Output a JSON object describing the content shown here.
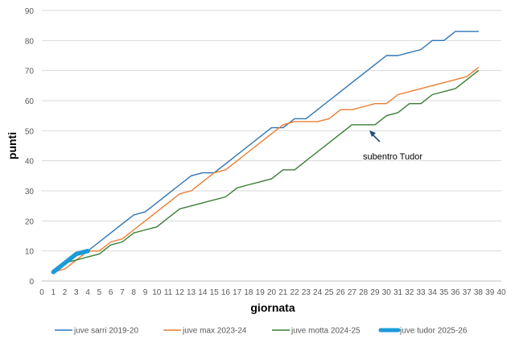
{
  "chart_data": {
    "type": "line",
    "title": "",
    "xlabel": "giornata",
    "ylabel": "punti",
    "xlim": [
      0,
      40
    ],
    "ylim": [
      0,
      90
    ],
    "x_ticks": [
      0,
      1,
      2,
      3,
      4,
      5,
      6,
      7,
      8,
      9,
      10,
      11,
      12,
      13,
      14,
      15,
      16,
      17,
      18,
      19,
      20,
      21,
      22,
      23,
      24,
      25,
      26,
      27,
      28,
      29,
      30,
      31,
      32,
      33,
      34,
      35,
      36,
      37,
      38,
      39,
      40
    ],
    "y_ticks": [
      0,
      10,
      20,
      30,
      40,
      50,
      60,
      70,
      80,
      90
    ],
    "grid": "horizontal",
    "legend_position": "bottom",
    "series": [
      {
        "name": "juve sarri 2019-20",
        "color": "#2E75B6",
        "x": [
          1,
          2,
          3,
          4,
          5,
          6,
          7,
          8,
          9,
          10,
          11,
          12,
          13,
          14,
          15,
          16,
          17,
          18,
          19,
          20,
          21,
          22,
          23,
          24,
          25,
          26,
          27,
          28,
          29,
          30,
          31,
          32,
          33,
          34,
          35,
          36,
          37,
          38
        ],
        "values": [
          3,
          6,
          9,
          10,
          13,
          16,
          19,
          22,
          23,
          26,
          29,
          32,
          35,
          36,
          36,
          39,
          42,
          45,
          48,
          51,
          51,
          54,
          54,
          57,
          60,
          63,
          66,
          69,
          72,
          75,
          75,
          76,
          77,
          80,
          80,
          83,
          83,
          83
        ]
      },
      {
        "name": "juve max 2023-24",
        "color": "#ED7D31",
        "x": [
          1,
          2,
          3,
          4,
          5,
          6,
          7,
          8,
          9,
          10,
          11,
          12,
          13,
          14,
          15,
          16,
          17,
          18,
          19,
          20,
          21,
          22,
          23,
          24,
          25,
          26,
          27,
          28,
          29,
          30,
          31,
          32,
          33,
          34,
          35,
          36,
          37,
          38
        ],
        "values": [
          3,
          4,
          7,
          10,
          10,
          13,
          14,
          17,
          20,
          23,
          26,
          29,
          30,
          33,
          36,
          37,
          40,
          43,
          46,
          49,
          52,
          53,
          53,
          53,
          54,
          57,
          57,
          58,
          59,
          59,
          62,
          63,
          64,
          65,
          66,
          67,
          68,
          71
        ]
      },
      {
        "name": "juve motta 2024-25",
        "color": "#3A7D34",
        "x": [
          1,
          2,
          3,
          4,
          5,
          6,
          7,
          8,
          9,
          10,
          11,
          12,
          13,
          14,
          15,
          16,
          17,
          18,
          19,
          20,
          21,
          22,
          23,
          24,
          25,
          26,
          27,
          28,
          29,
          30,
          31,
          32,
          33,
          34,
          35,
          36,
          37,
          38
        ],
        "values": [
          3,
          6,
          7,
          8,
          9,
          12,
          13,
          16,
          17,
          18,
          21,
          24,
          25,
          26,
          27,
          28,
          31,
          32,
          33,
          34,
          37,
          37,
          40,
          43,
          46,
          49,
          52,
          52,
          52,
          55,
          56,
          59,
          59,
          62,
          63,
          64,
          67,
          70
        ]
      },
      {
        "name": "juve tudor 2025-26",
        "color": "#1C9BD8",
        "x": [
          1,
          2,
          3,
          4
        ],
        "values": [
          3,
          6,
          9,
          10
        ]
      }
    ],
    "annotations": [
      {
        "text": "subentro Tudor",
        "x": 29,
        "y": 49
      }
    ]
  }
}
